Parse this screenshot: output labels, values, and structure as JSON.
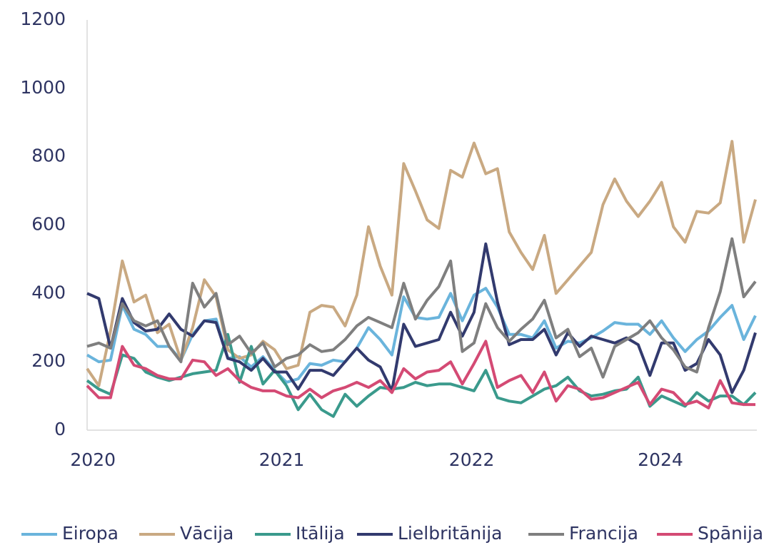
{
  "chart_data": {
    "type": "line",
    "xlim": [
      0,
      57
    ],
    "xticks": [
      {
        "value": 0.5,
        "label": "2020"
      },
      {
        "value": 16.6,
        "label": "2021"
      },
      {
        "value": 32.8,
        "label": "2022"
      },
      {
        "value": 48.9,
        "label": "2024"
      }
    ],
    "ylim": [
      0,
      1200
    ],
    "yticks": [
      0,
      200,
      400,
      600,
      800,
      1000,
      1200
    ],
    "legend": "bottom",
    "series": [
      {
        "name": "Eiropa",
        "color": "#6ab4dc",
        "values": [
          220,
          200,
          205,
          365,
          295,
          280,
          245,
          245,
          205,
          280,
          320,
          325,
          210,
          215,
          185,
          215,
          175,
          140,
          150,
          195,
          190,
          205,
          200,
          240,
          300,
          265,
          220,
          390,
          330,
          325,
          330,
          400,
          320,
          395,
          415,
          360,
          280,
          280,
          270,
          320,
          240,
          260,
          255,
          270,
          290,
          315,
          310,
          310,
          280,
          320,
          270,
          230,
          265,
          290,
          330,
          365,
          265,
          335
        ]
      },
      {
        "name": "Vācija",
        "color": "#c9a982",
        "values": [
          180,
          130,
          290,
          495,
          375,
          395,
          285,
          310,
          205,
          300,
          440,
          390,
          235,
          210,
          220,
          260,
          235,
          180,
          190,
          345,
          365,
          360,
          305,
          395,
          595,
          480,
          395,
          780,
          700,
          615,
          590,
          760,
          740,
          840,
          750,
          765,
          580,
          520,
          470,
          570,
          400,
          440,
          480,
          520,
          660,
          735,
          670,
          625,
          670,
          725,
          595,
          550,
          640,
          635,
          665,
          845,
          550,
          675
        ]
      },
      {
        "name": "Itālija",
        "color": "#3a9a8c",
        "values": [
          145,
          120,
          105,
          220,
          210,
          170,
          155,
          145,
          155,
          165,
          170,
          175,
          280,
          140,
          245,
          135,
          175,
          130,
          60,
          105,
          60,
          40,
          105,
          70,
          100,
          125,
          120,
          125,
          140,
          130,
          135,
          135,
          125,
          115,
          175,
          95,
          85,
          80,
          100,
          120,
          130,
          155,
          115,
          100,
          105,
          115,
          120,
          155,
          70,
          100,
          85,
          70,
          110,
          85,
          100,
          100,
          75,
          110
        ]
      },
      {
        "name": "Lielbritānija",
        "color": "#323a6e",
        "values": [
          400,
          385,
          240,
          385,
          315,
          290,
          295,
          340,
          295,
          275,
          320,
          315,
          210,
          200,
          175,
          210,
          170,
          170,
          120,
          175,
          175,
          160,
          200,
          240,
          205,
          185,
          115,
          310,
          245,
          255,
          265,
          345,
          275,
          345,
          545,
          375,
          250,
          265,
          265,
          295,
          220,
          285,
          245,
          275,
          265,
          255,
          270,
          250,
          160,
          255,
          255,
          175,
          195,
          265,
          220,
          110,
          175,
          285
        ]
      },
      {
        "name": "Francija",
        "color": "#7f7f7f",
        "values": [
          245,
          255,
          240,
          370,
          320,
          305,
          320,
          245,
          200,
          430,
          360,
          400,
          250,
          275,
          225,
          255,
          185,
          210,
          220,
          250,
          230,
          235,
          265,
          305,
          330,
          315,
          300,
          430,
          325,
          380,
          420,
          495,
          230,
          255,
          370,
          300,
          260,
          295,
          325,
          380,
          270,
          295,
          215,
          240,
          155,
          245,
          265,
          285,
          320,
          270,
          235,
          185,
          170,
          300,
          405,
          560,
          390,
          435
        ]
      },
      {
        "name": "Spānija",
        "color": "#d44a74",
        "values": [
          130,
          95,
          95,
          245,
          190,
          180,
          160,
          150,
          150,
          205,
          200,
          160,
          180,
          145,
          125,
          115,
          115,
          100,
          95,
          120,
          95,
          115,
          125,
          140,
          125,
          145,
          110,
          180,
          150,
          170,
          175,
          200,
          135,
          195,
          260,
          125,
          145,
          160,
          110,
          170,
          85,
          130,
          120,
          90,
          95,
          110,
          125,
          140,
          75,
          120,
          110,
          75,
          85,
          65,
          145,
          80,
          75,
          75
        ]
      }
    ]
  }
}
